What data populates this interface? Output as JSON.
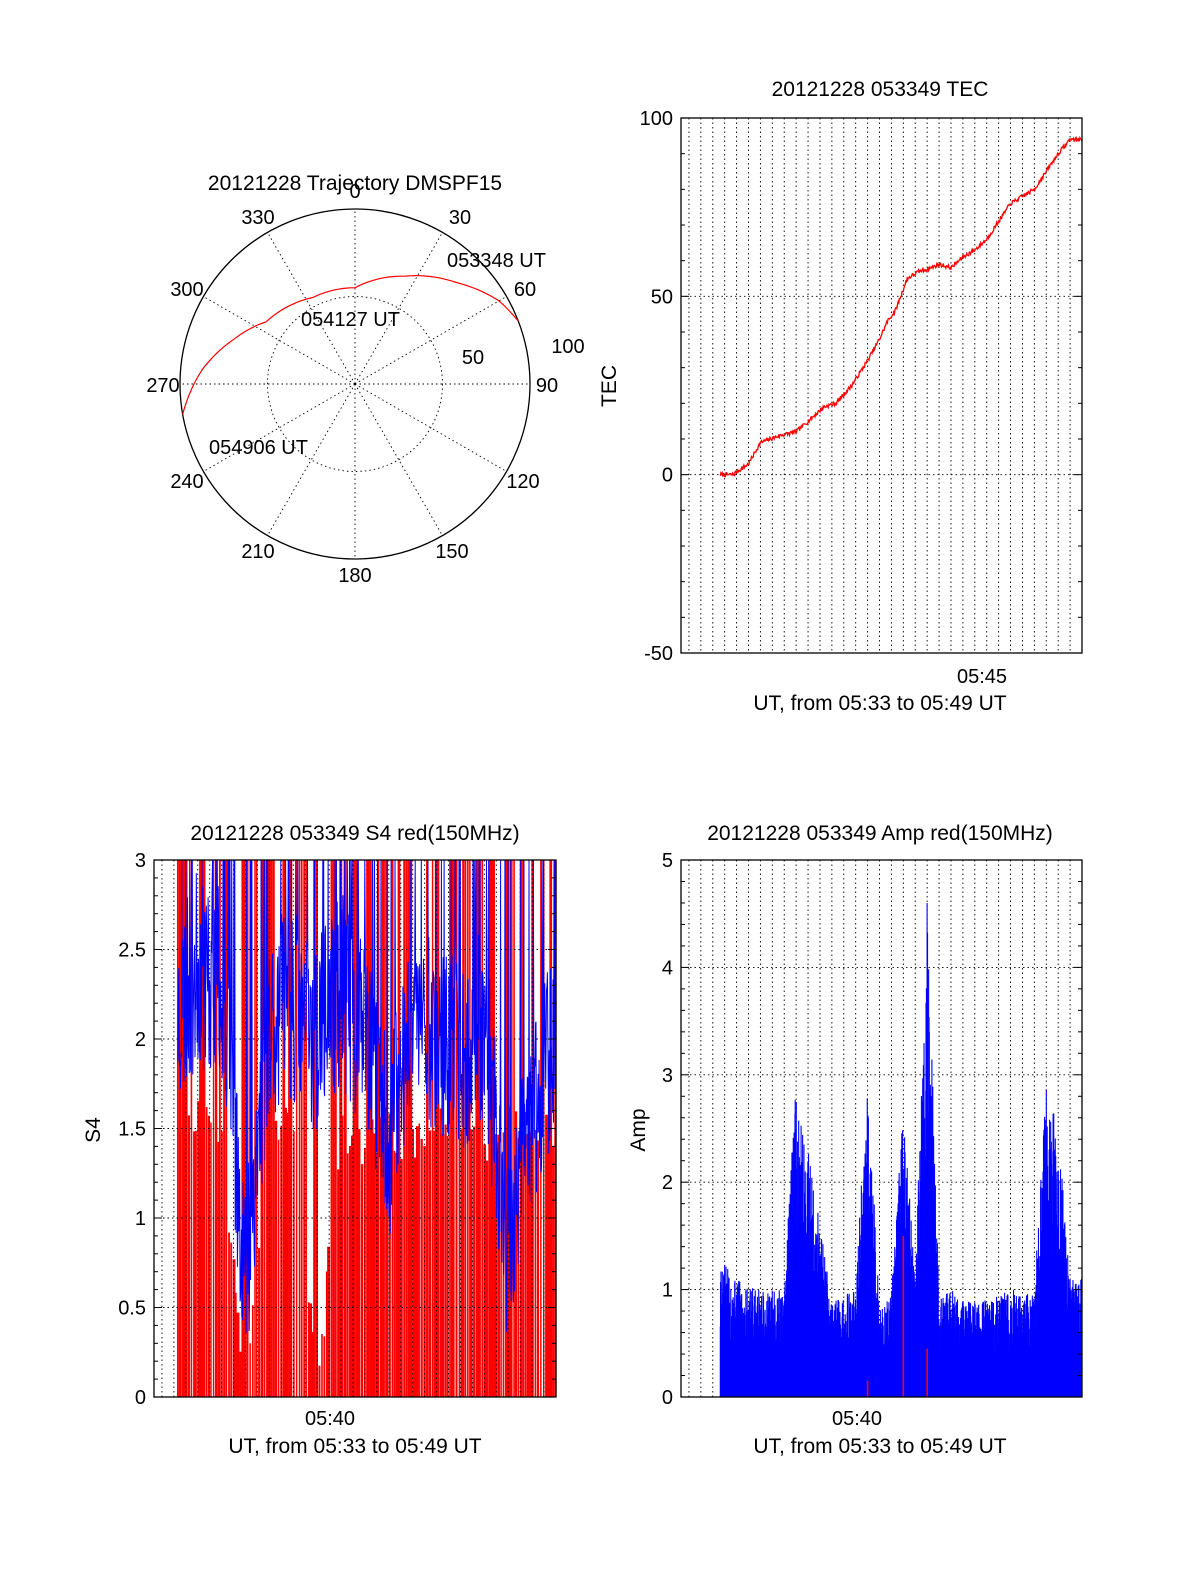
{
  "colors": {
    "red": "#ff0000",
    "blue": "#0000ff",
    "frame": "#000000",
    "background": "#ffffff"
  },
  "chart_data": [
    {
      "type": "polar",
      "title": "20121228 Trajectory DMSPF15",
      "angle_labels": [
        "0",
        "30",
        "60",
        "90",
        "120",
        "150",
        "180",
        "210",
        "240",
        "270",
        "300",
        "330"
      ],
      "radius_labels": [
        "50",
        "100"
      ],
      "series": [
        {
          "color": "#ff0000",
          "points": [
            {
              "az": 69,
              "r": 100
            },
            {
              "az": 60,
              "r": 95
            },
            {
              "az": 45,
              "r": 82
            },
            {
              "az": 25,
              "r": 68
            },
            {
              "az": 0,
              "r": 55
            },
            {
              "az": 334,
              "r": 55
            },
            {
              "az": 305,
              "r": 62
            },
            {
              "az": 290,
              "r": 74
            },
            {
              "az": 275,
              "r": 88
            },
            {
              "az": 260,
              "r": 100
            }
          ]
        }
      ],
      "annotations": [
        {
          "text": "053348 UT",
          "az": 62,
          "r": 100
        },
        {
          "text": "054127 UT",
          "az": 335,
          "r": 58
        },
        {
          "text": "054906 UT",
          "az": 258,
          "r": 100
        }
      ]
    },
    {
      "type": "line",
      "title": "20121228 053349 TEC",
      "xlabel": "UT, from 05:33 to 05:49 UT",
      "ylabel": "TEC",
      "xlim": [
        "05:32:10",
        "05:49:00"
      ],
      "ylim": [
        -50,
        100
      ],
      "yticks": [
        -50,
        0,
        50,
        100
      ],
      "xtick_labels": [
        "05:45"
      ],
      "grid": true,
      "series": [
        {
          "color": "#ff0000",
          "x": [
            "05:33:49",
            "05:34:20",
            "05:35:00",
            "05:35:30",
            "05:36:20",
            "05:37:00",
            "05:37:40",
            "05:38:10",
            "05:38:40",
            "05:39:20",
            "05:40:00",
            "05:40:30",
            "05:40:50",
            "05:41:10",
            "05:41:40",
            "05:42:10",
            "05:42:40",
            "05:43:00",
            "05:43:30",
            "05:44:00",
            "05:44:30",
            "05:45:00",
            "05:45:30",
            "05:46:00",
            "05:46:30",
            "05:47:00",
            "05:47:30",
            "05:48:00",
            "05:48:30",
            "05:49:00"
          ],
          "y": [
            0,
            0,
            3,
            9,
            11,
            12,
            16,
            19,
            20,
            25,
            32,
            38,
            43,
            46,
            55,
            57,
            58,
            59,
            58,
            61,
            63,
            66,
            71,
            76,
            78,
            80,
            85,
            90,
            94,
            94
          ]
        }
      ]
    },
    {
      "type": "line",
      "title": "20121228 053349 S4 red(150MHz)",
      "xlabel": "UT, from 05:33 to 05:49 UT",
      "ylabel": "S4",
      "xlim": [
        "05:32:10",
        "05:49:00"
      ],
      "ylim": [
        0,
        3
      ],
      "yticks": [
        0,
        0.5,
        1,
        1.5,
        2,
        2.5,
        3
      ],
      "xtick_labels": [
        "05:40"
      ],
      "grid": true,
      "series": [
        {
          "color": "#ff0000",
          "x": [
            "05:33:00",
            "05:34:00",
            "05:35:00",
            "05:36:00",
            "05:37:00",
            "05:38:00",
            "05:39:00",
            "05:40:00",
            "05:41:00",
            "05:42:00",
            "05:43:00",
            "05:44:00",
            "05:45:00",
            "05:46:00",
            "05:47:00",
            "05:48:00",
            "05:49:00"
          ],
          "y": [
            1.6,
            1.6,
            1.5,
            0,
            1.5,
            1.5,
            0,
            1.5,
            1.4,
            1.5,
            1.4,
            1.5,
            1.5,
            1.4,
            1.5,
            1.5,
            1.5
          ]
        },
        {
          "color": "#0000ff",
          "x": [
            "05:33:00",
            "05:34:00",
            "05:35:00",
            "05:36:00",
            "05:37:00",
            "05:38:00",
            "05:39:00",
            "05:40:00",
            "05:41:00",
            "05:42:00",
            "05:43:00",
            "05:44:00",
            "05:45:00",
            "05:46:00",
            "05:47:00",
            "05:48:00",
            "05:49:00"
          ],
          "y": [
            2.1,
            2.4,
            2.3,
            0.7,
            2.1,
            2.2,
            2.0,
            2.3,
            2.0,
            1.4,
            2.2,
            2.0,
            1.9,
            2.1,
            0.8,
            1.6,
            2.0
          ]
        }
      ]
    },
    {
      "type": "line",
      "title": "20121228 053349 Amp red(150MHz)",
      "xlabel": "UT, from 05:33 to 05:49 UT",
      "ylabel": "Amp",
      "xlim": [
        "05:32:10",
        "05:49:00"
      ],
      "ylim": [
        0,
        5
      ],
      "yticks": [
        0,
        1,
        2,
        3,
        4,
        5
      ],
      "xtick_labels": [
        "05:40"
      ],
      "grid": true,
      "series": [
        {
          "color": "#0000ff",
          "x": [
            "05:33:49",
            "05:34:30",
            "05:35:30",
            "05:36:30",
            "05:37:00",
            "05:37:30",
            "05:38:30",
            "05:39:30",
            "05:40:00",
            "05:40:30",
            "05:41:00",
            "05:41:30",
            "05:42:00",
            "05:42:30",
            "05:43:00",
            "05:43:30",
            "05:44:00",
            "05:45:00",
            "05:46:00",
            "05:47:00",
            "05:47:30",
            "05:48:00",
            "05:48:30",
            "05:49:00"
          ],
          "y": [
            1.3,
            1.1,
            1.0,
            1.0,
            3.0,
            2.3,
            0.9,
            1.0,
            3.1,
            0.8,
            1.0,
            2.7,
            1.1,
            4.7,
            0.9,
            1.0,
            0.9,
            0.9,
            1.0,
            1.0,
            2.9,
            2.5,
            1.1,
            1.1
          ]
        },
        {
          "color": "#ff0000",
          "x": [
            "05:40:00",
            "05:41:30",
            "05:42:30"
          ],
          "y": [
            0.15,
            1.5,
            0.45
          ]
        }
      ]
    }
  ]
}
